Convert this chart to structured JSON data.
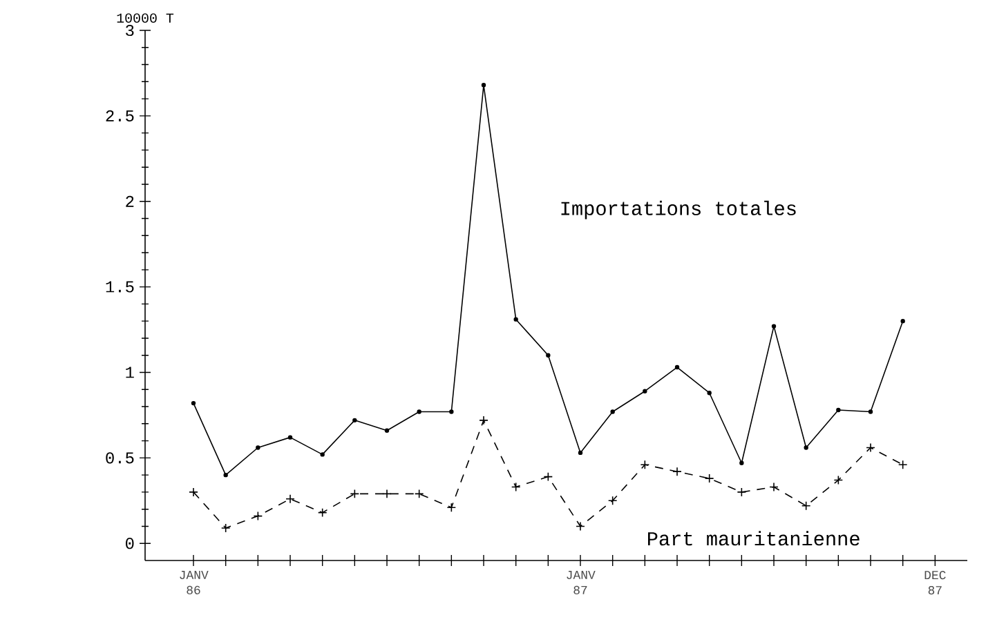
{
  "chart_data": {
    "type": "line",
    "ylabel": "10000 T",
    "ylim": [
      -0.1,
      3
    ],
    "yticks": [
      0,
      0.5,
      1,
      1.5,
      2,
      2.5,
      3
    ],
    "xlim": [
      "1985-11-16",
      "1988-01"
    ],
    "xticks": [
      {
        "value": "1986-01",
        "label": "JANV 86"
      },
      {
        "value": "1986-02",
        "label": null
      },
      {
        "value": "1986-03",
        "label": null
      },
      {
        "value": "1986-04",
        "label": null
      },
      {
        "value": "1986-05",
        "label": null
      },
      {
        "value": "1986-06",
        "label": null
      },
      {
        "value": "1986-07",
        "label": null
      },
      {
        "value": "1986-08",
        "label": null
      },
      {
        "value": "1986-09",
        "label": null
      },
      {
        "value": "1986-10",
        "label": null
      },
      {
        "value": "1986-11",
        "label": null
      },
      {
        "value": "1986-12",
        "label": null
      },
      {
        "value": "1987-01",
        "label": "JANV 87"
      },
      {
        "value": "1987-02",
        "label": null
      },
      {
        "value": "1987-03",
        "label": null
      },
      {
        "value": "1987-04",
        "label": null
      },
      {
        "value": "1987-05",
        "label": null
      },
      {
        "value": "1987-06",
        "label": null
      },
      {
        "value": "1987-07",
        "label": null
      },
      {
        "value": "1987-08",
        "label": null
      },
      {
        "value": "1987-09",
        "label": null
      },
      {
        "value": "1987-10",
        "label": null
      },
      {
        "value": "1987-11",
        "label": null
      },
      {
        "value": "1987-12",
        "label": "DEC 87"
      }
    ],
    "x": [
      "1986-01",
      "1986-02",
      "1986-03",
      "1986-04",
      "1986-05",
      "1986-06",
      "1986-07",
      "1986-08",
      "1986-09",
      "1986-10",
      "1986-11",
      "1986-12",
      "1987-01",
      "1987-02",
      "1987-03",
      "1987-04",
      "1987-05",
      "1987-06",
      "1987-07",
      "1987-08",
      "1987-09",
      "1987-10",
      "1987-11"
    ],
    "legend": false,
    "series": [
      {
        "name": "Importations totales",
        "color": "#000000",
        "marker": "circle",
        "line_style": "solid",
        "values": [
          0.82,
          0.4,
          0.56,
          0.62,
          0.52,
          0.72,
          0.66,
          0.77,
          0.77,
          2.68,
          1.31,
          1.1,
          0.53,
          0.77,
          0.89,
          1.03,
          0.88,
          0.47,
          1.27,
          0.56,
          0.78,
          0.77,
          1.3
        ]
      },
      {
        "name": "Part mauritanienne",
        "color": "#000000",
        "marker": "cross",
        "line_style": "dashed",
        "values": [
          0.3,
          0.09,
          0.16,
          0.26,
          0.18,
          0.29,
          0.29,
          0.29,
          0.21,
          0.72,
          0.33,
          0.39,
          0.1,
          0.25,
          0.46,
          0.42,
          0.38,
          0.3,
          0.33,
          0.22,
          0.37,
          0.56,
          0.46
        ]
      }
    ]
  }
}
